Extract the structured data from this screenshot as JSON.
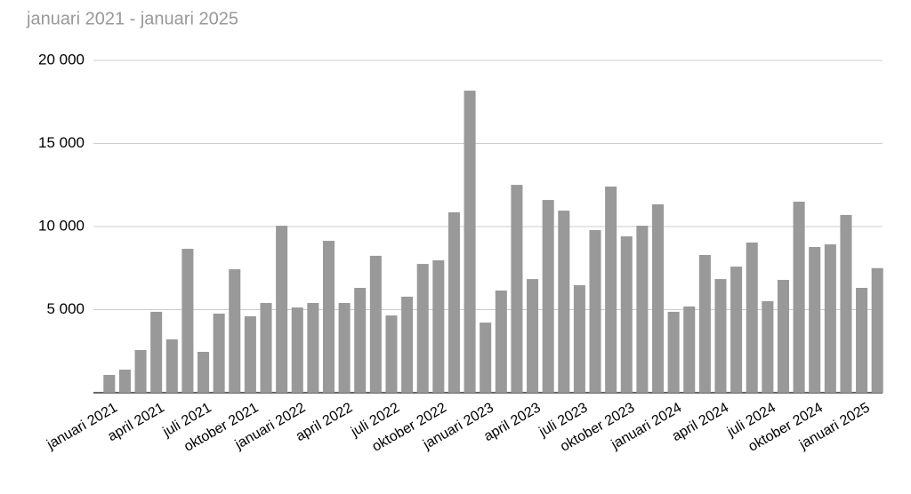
{
  "chart_data": {
    "type": "bar",
    "title": "januari 2021 - januari 2025",
    "categories": [
      "januari 2021",
      null,
      null,
      "april 2021",
      null,
      null,
      "juli 2021",
      null,
      null,
      "oktober 2021",
      null,
      null,
      "januari 2022",
      null,
      null,
      "april 2022",
      null,
      null,
      "juli 2022",
      null,
      null,
      "oktober 2022",
      null,
      null,
      "januari 2023",
      null,
      null,
      "april 2023",
      null,
      null,
      "juli 2023",
      null,
      null,
      "oktober 2023",
      null,
      null,
      "januari 2024",
      null,
      null,
      "april 2024",
      null,
      null,
      "juli 2024",
      null,
      null,
      "oktober 2024",
      null,
      null,
      "januari 2025",
      null
    ],
    "values": [
      1070,
      1390,
      2570,
      4870,
      3210,
      8660,
      2460,
      4760,
      7430,
      4600,
      5400,
      10050,
      5130,
      5400,
      9140,
      5400,
      6310,
      8240,
      4650,
      5780,
      7750,
      7970,
      10860,
      18180,
      4220,
      6150,
      12510,
      6840,
      11600,
      10960,
      6470,
      9790,
      12410,
      9410,
      10050,
      11340,
      4870,
      5190,
      8290,
      6840,
      7590,
      9040,
      5510,
      6790,
      11500,
      8770,
      8930,
      10700,
      6310,
      7500
    ],
    "color": "#999999",
    "ylim": [
      0,
      20000
    ],
    "yticks": [
      {
        "value": 5000,
        "label": "5 000"
      },
      {
        "value": 10000,
        "label": "10 000"
      },
      {
        "value": 15000,
        "label": "15 000"
      },
      {
        "value": 20000,
        "label": "20 000"
      }
    ],
    "grid": true
  }
}
